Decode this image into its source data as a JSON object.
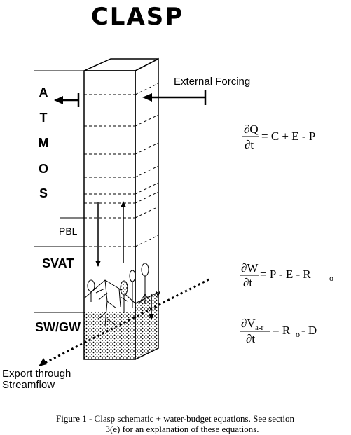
{
  "title": "CLASP",
  "layers": {
    "atmos_letters": [
      "A",
      "T",
      "M",
      "O",
      "S"
    ],
    "pbl": "PBL",
    "svat": "SVAT",
    "swgw": "SW/GW"
  },
  "labels": {
    "external_forcing": "External Forcing",
    "export_line1": "Export through",
    "export_line2": "Streamflow"
  },
  "equations": {
    "eq1": {
      "num": "∂Q",
      "den": "∂t",
      "rhs": "= C + E - P"
    },
    "eq2": {
      "num": "∂W",
      "den": "∂t",
      "rhs": "= P - E - R",
      "rhs_sub": "o"
    },
    "eq3": {
      "num": "∂V",
      "num_sub": "a-r",
      "den": "∂t",
      "rhs": "= R",
      "rhs_sub": "o",
      "rhs_tail": "- D"
    }
  },
  "caption": {
    "line1": "Figure 1 - Clasp schematic + water-budget equations.  See section",
    "line2": "3(e) for an explanation of these equations."
  },
  "colors": {
    "ink": "#000000",
    "paper": "#ffffff"
  }
}
